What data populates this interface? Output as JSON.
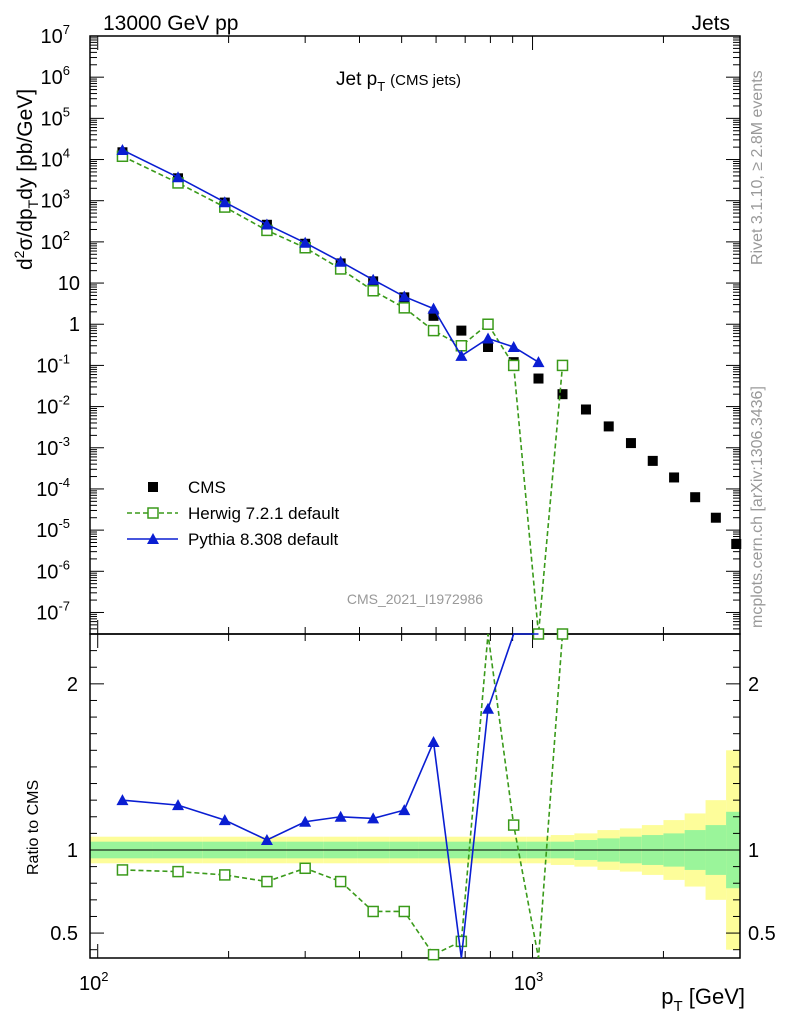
{
  "header": {
    "left": "13000 GeV pp",
    "right": "Jets"
  },
  "plot_title": {
    "main": "Jet p",
    "sub": "T",
    "suffix": "(CMS jets)"
  },
  "side_labels": {
    "rivet": "Rivet 3.1.10, ≥ 2.8M events",
    "mcplots": "mcplots.cern.ch [arXiv:1306.3436]"
  },
  "analysis_id": "CMS_2021_I1972986",
  "ratio_ylabel": "Ratio to CMS",
  "xaxis": {
    "label_main": "p",
    "label_sub": "T",
    "label_unit": " [GeV]"
  },
  "colors": {
    "cms": "#000000",
    "herwig": "#3a9a1a",
    "pythia": "#0a1ed2",
    "band_inner": "#9af59a",
    "band_outer": "#fdfd9a"
  },
  "chart_data": {
    "type": "scatter",
    "x_scale": "log",
    "y_scale": "log",
    "xlim": [
      96,
      3000
    ],
    "main_ylim": [
      3e-08,
      10000000.0
    ],
    "ratio_ylim": [
      0.35,
      2.3
    ],
    "main_ylabel": {
      "a": "d",
      "b": "2",
      "c": "σ/dp",
      "d": "T",
      "e": "dy [pb/GeV]"
    },
    "x_tick_labels": [
      {
        "x": 100,
        "label": "10",
        "exp": "2"
      },
      {
        "x": 1000,
        "label": "10",
        "exp": "3"
      }
    ],
    "main_y_tick_labels": [
      {
        "y": 10000000.0,
        "label": "10",
        "exp": "7"
      },
      {
        "y": 1000000.0,
        "label": "10",
        "exp": "6"
      },
      {
        "y": 100000.0,
        "label": "10",
        "exp": "5"
      },
      {
        "y": 10000.0,
        "label": "10",
        "exp": "4"
      },
      {
        "y": 1000.0,
        "label": "10",
        "exp": "3"
      },
      {
        "y": 100.0,
        "label": "10",
        "exp": "2"
      },
      {
        "y": 10,
        "label": "10",
        "exp": ""
      },
      {
        "y": 1,
        "label": "1",
        "exp": ""
      },
      {
        "y": 0.1,
        "label": "10",
        "exp": "-1"
      },
      {
        "y": 0.01,
        "label": "10",
        "exp": "-2"
      },
      {
        "y": 0.001,
        "label": "10",
        "exp": "-3"
      },
      {
        "y": 0.0001,
        "label": "10",
        "exp": "-4"
      },
      {
        "y": 1e-05,
        "label": "10",
        "exp": "-5"
      },
      {
        "y": 1e-06,
        "label": "10",
        "exp": "-6"
      },
      {
        "y": 1e-07,
        "label": "10",
        "exp": "-7"
      }
    ],
    "ratio_y_tick_labels": [
      {
        "y": 0.5,
        "label": "0.5"
      },
      {
        "y": 1,
        "label": "1"
      },
      {
        "y": 2,
        "label": "2"
      }
    ],
    "series": [
      {
        "name": "CMS",
        "marker": "square-filled",
        "x": [
          114,
          153,
          196,
          245,
          300,
          362,
          430,
          507,
          592,
          686,
          790,
          905,
          1032,
          1172,
          1327,
          1497,
          1684,
          1890,
          2116,
          2366,
          2640,
          2941
        ],
        "y": [
          15000,
          3500,
          900,
          260,
          90,
          30,
          11,
          4.5,
          1.6,
          0.7,
          0.28,
          0.12,
          0.048,
          0.02,
          0.0085,
          0.0033,
          0.0013,
          0.00048,
          0.00019,
          6.3e-05,
          2e-05,
          4.6e-06
        ]
      },
      {
        "name": "Herwig 7.2.1 default",
        "marker": "square-open",
        "line": "dashed",
        "x": [
          114,
          153,
          196,
          245,
          300,
          362,
          430,
          507,
          592,
          686,
          790,
          905,
          1032,
          1172
        ],
        "y": [
          12000,
          2700,
          700,
          190,
          72,
          22,
          6.5,
          2.5,
          0.7,
          0.3,
          1.0,
          0.1,
          3e-08,
          0.1
        ],
        "ratio": [
          0.88,
          0.87,
          0.85,
          0.81,
          0.89,
          0.81,
          0.63,
          0.63,
          0.37,
          0.45,
          3.0,
          1.15,
          0.3,
          2.3
        ]
      },
      {
        "name": "Pythia 8.308 default",
        "marker": "triangle-filled",
        "line": "solid",
        "x": [
          114,
          153,
          196,
          245,
          300,
          362,
          430,
          507,
          592,
          686,
          790,
          905,
          1032
        ],
        "y": [
          17000,
          3700,
          920,
          265,
          95,
          33,
          12,
          4.7,
          2.4,
          0.17,
          0.45,
          0.28,
          0.12
        ],
        "ratio": [
          1.3,
          1.27,
          1.18,
          1.06,
          1.17,
          1.2,
          1.19,
          1.24,
          1.65,
          0.2,
          1.85,
          3.0,
          3.0
        ]
      }
    ],
    "uncertainty_band": {
      "edges": [
        96,
        134,
        174,
        220,
        272,
        331,
        396,
        468,
        548,
        638,
        737,
        846,
        967,
        1101,
        1248,
        1410,
        1588,
        1784,
        2000,
        2238,
        2500,
        2787,
        3000
      ],
      "inner": [
        0.05,
        0.05,
        0.05,
        0.05,
        0.05,
        0.05,
        0.05,
        0.05,
        0.05,
        0.05,
        0.05,
        0.05,
        0.05,
        0.05,
        0.06,
        0.07,
        0.08,
        0.09,
        0.1,
        0.12,
        0.15,
        0.23
      ],
      "outer": [
        0.08,
        0.08,
        0.08,
        0.08,
        0.08,
        0.08,
        0.08,
        0.08,
        0.08,
        0.08,
        0.08,
        0.08,
        0.08,
        0.09,
        0.1,
        0.12,
        0.13,
        0.15,
        0.18,
        0.22,
        0.3,
        0.6
      ]
    }
  }
}
